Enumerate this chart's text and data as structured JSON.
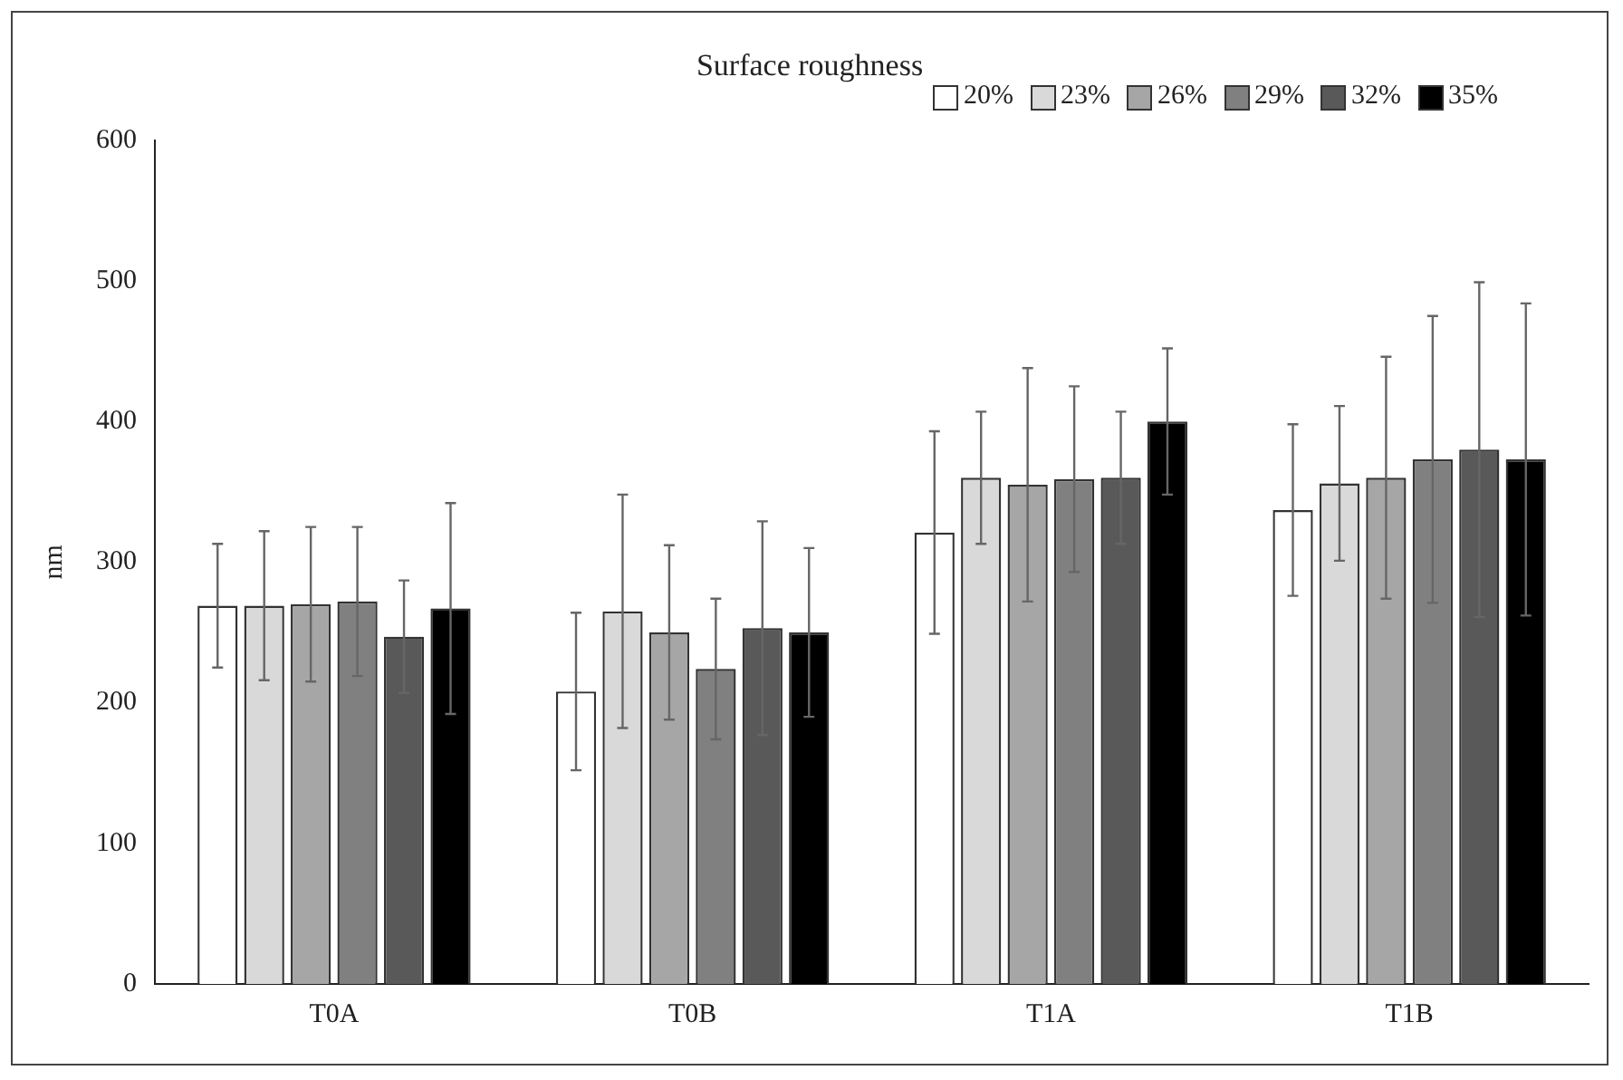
{
  "chart_data": {
    "type": "bar",
    "title": "Surface roughness",
    "ylabel": "nm",
    "categories": [
      "T0A",
      "T0B",
      "T1A",
      "T1B"
    ],
    "series": [
      {
        "name": "20%",
        "color": "#ffffff",
        "values": [
          269,
          208,
          321,
          337
        ],
        "errors": [
          44,
          56,
          72,
          61
        ]
      },
      {
        "name": "23%",
        "color": "#d9d9d9",
        "values": [
          269,
          265,
          360,
          356
        ],
        "errors": [
          53,
          83,
          47,
          55
        ]
      },
      {
        "name": "26%",
        "color": "#a6a6a6",
        "values": [
          270,
          250,
          355,
          360
        ],
        "errors": [
          55,
          62,
          83,
          86
        ]
      },
      {
        "name": "29%",
        "color": "#808080",
        "values": [
          272,
          224,
          359,
          373
        ],
        "errors": [
          53,
          50,
          66,
          102
        ]
      },
      {
        "name": "32%",
        "color": "#595959",
        "values": [
          247,
          253,
          360,
          380
        ],
        "errors": [
          40,
          76,
          47,
          119
        ]
      },
      {
        "name": "35%",
        "color": "#000000",
        "values": [
          267,
          250,
          400,
          373
        ],
        "errors": [
          75,
          60,
          52,
          111
        ]
      }
    ],
    "ylim": [
      0,
      600
    ],
    "yticks": [
      0,
      100,
      200,
      300,
      400,
      500,
      600
    ],
    "grid": false,
    "legend": "top right"
  }
}
